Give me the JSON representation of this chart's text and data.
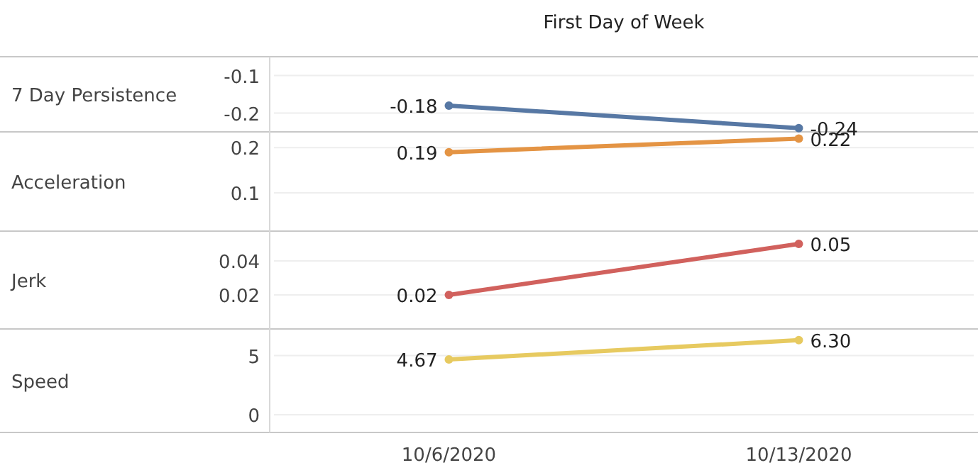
{
  "chart_data": [
    {
      "type": "line",
      "title": "First Day of Week",
      "ylabel": "7 Day Persistence",
      "series": [
        {
          "color": "#5778a4",
          "values": [
            -0.18,
            -0.24
          ],
          "value_labels": [
            "-0.18",
            "-0.24"
          ]
        }
      ],
      "ylim": [
        -0.25,
        -0.05
      ],
      "yticks": [
        -0.1,
        -0.2
      ],
      "grid": "y",
      "marker": "circle",
      "tick_labels": "y"
    },
    {
      "type": "line",
      "ylabel": "Acceleration",
      "series": [
        {
          "color": "#e49444",
          "values": [
            0.19,
            0.22
          ],
          "value_labels": [
            "0.19",
            "0.22"
          ]
        }
      ],
      "ylim": [
        0.015,
        0.235
      ],
      "yticks": [
        0.2,
        0.1
      ],
      "grid": "y",
      "marker": "circle",
      "tick_labels": "y"
    },
    {
      "type": "line",
      "ylabel": "Jerk",
      "series": [
        {
          "color": "#d1615d",
          "values": [
            0.02,
            0.05
          ],
          "value_labels": [
            "0.02",
            "0.05"
          ]
        }
      ],
      "ylim": [
        0,
        0.0575
      ],
      "yticks": [
        0.04,
        0.02
      ],
      "grid": "y",
      "marker": "circle",
      "tick_labels": "y"
    },
    {
      "type": "line",
      "ylabel": "Speed",
      "categories": [
        "10/6/2020",
        "10/13/2020"
      ],
      "series": [
        {
          "color": "#e7ca60",
          "values": [
            4.67,
            6.3
          ],
          "value_labels": [
            "4.67",
            "6.30"
          ]
        }
      ],
      "ylim": [
        -1.5,
        7.25
      ],
      "yticks": [
        5,
        0
      ],
      "grid": "y",
      "marker": "circle"
    }
  ]
}
